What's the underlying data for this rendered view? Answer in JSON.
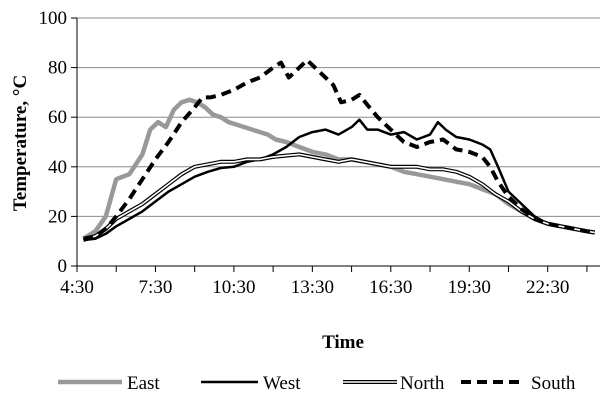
{
  "chart_data": {
    "type": "line",
    "title": "",
    "xlabel": "Time",
    "ylabel": "Temperature, °C",
    "x_ticks": [
      "4:30",
      "7:30",
      "10:30",
      "13:30",
      "16:30",
      "19:30",
      "22:30"
    ],
    "x_range": [
      4.5,
      24.5
    ],
    "ylim": [
      0,
      100
    ],
    "y_ticks": [
      0,
      20,
      40,
      60,
      80,
      100
    ],
    "grid": "horizontal",
    "legend_position": "bottom",
    "series": [
      {
        "name": "East",
        "color": "#999999",
        "style": "solid-thick",
        "x": [
          4.75,
          5.2,
          5.6,
          6.0,
          6.5,
          7.0,
          7.3,
          7.6,
          7.9,
          8.2,
          8.5,
          8.8,
          9.1,
          9.4,
          9.7,
          10.0,
          10.3,
          10.6,
          10.9,
          11.2,
          11.5,
          11.8,
          12.1,
          12.5,
          13.0,
          13.5,
          14.0,
          14.5,
          15.0,
          15.5,
          16.0,
          16.5,
          17.0,
          17.5,
          18.0,
          18.5,
          19.0,
          19.5,
          20.0,
          20.5,
          21.0,
          21.5,
          22.0,
          22.5,
          23.0,
          23.5,
          24.0,
          24.3
        ],
        "y": [
          11,
          14,
          20,
          35,
          37,
          45,
          55,
          58,
          56,
          63,
          66,
          67,
          66,
          64,
          61,
          60,
          58,
          57,
          56,
          55,
          54,
          53,
          51,
          50,
          48,
          46,
          45,
          43,
          43,
          42,
          41,
          40,
          38,
          37,
          36,
          35,
          34,
          33,
          31,
          29,
          25,
          22,
          19,
          17,
          16,
          15,
          14,
          13.5
        ]
      },
      {
        "name": "West",
        "color": "#000000",
        "style": "solid",
        "x": [
          4.75,
          5.2,
          5.6,
          6.0,
          6.5,
          7.0,
          7.5,
          8.0,
          8.5,
          9.0,
          9.5,
          10.0,
          10.5,
          11.0,
          11.5,
          12.0,
          12.5,
          13.0,
          13.5,
          14.0,
          14.5,
          15.0,
          15.3,
          15.6,
          16.0,
          16.5,
          17.0,
          17.5,
          18.0,
          18.3,
          18.6,
          19.0,
          19.5,
          20.0,
          20.3,
          20.6,
          21.0,
          21.5,
          22.0,
          22.5,
          23.0,
          23.5,
          24.0,
          24.3
        ],
        "y": [
          10.5,
          11,
          13,
          16,
          19,
          22,
          26,
          30,
          33,
          36,
          38,
          39.5,
          40,
          42,
          43,
          45,
          48,
          52,
          54,
          55,
          53,
          56,
          59,
          55,
          55,
          53,
          54,
          51,
          53,
          58,
          55,
          52,
          51,
          49,
          47,
          40,
          30,
          25,
          20,
          17,
          16,
          15,
          14,
          13.5
        ]
      },
      {
        "name": "North",
        "color": "#000000",
        "style": "double",
        "x": [
          4.75,
          5.2,
          5.6,
          6.0,
          6.5,
          7.0,
          7.5,
          8.0,
          8.5,
          9.0,
          9.5,
          10.0,
          10.5,
          11.0,
          11.5,
          12.0,
          12.5,
          13.0,
          13.5,
          14.0,
          14.5,
          15.0,
          15.5,
          16.0,
          16.5,
          17.0,
          17.5,
          18.0,
          18.5,
          19.0,
          19.5,
          20.0,
          20.5,
          21.0,
          21.5,
          22.0,
          22.5,
          23.0,
          23.5,
          24.0,
          24.3
        ],
        "y": [
          11,
          12,
          15,
          19,
          22,
          25,
          29,
          33,
          37,
          40,
          41,
          42,
          42,
          43,
          43,
          44,
          44.5,
          45,
          44,
          43,
          42,
          43,
          42,
          41,
          40,
          40,
          40,
          39,
          39,
          38,
          36,
          33,
          29,
          26,
          22,
          19,
          17,
          16,
          15,
          14,
          13.5
        ]
      },
      {
        "name": "South",
        "color": "#000000",
        "style": "dashed-thick",
        "x": [
          4.75,
          5.2,
          5.6,
          6.0,
          6.5,
          7.0,
          7.5,
          8.0,
          8.5,
          9.0,
          9.3,
          9.6,
          10.0,
          10.5,
          11.0,
          11.5,
          12.0,
          12.3,
          12.6,
          13.0,
          13.3,
          13.6,
          14.0,
          14.3,
          14.6,
          15.0,
          15.3,
          15.6,
          16.0,
          16.5,
          17.0,
          17.5,
          18.0,
          18.5,
          19.0,
          19.5,
          20.0,
          20.3,
          20.6,
          21.0,
          21.5,
          22.0,
          22.5,
          23.0,
          23.5,
          24.0,
          24.3
        ],
        "y": [
          10.5,
          12,
          15,
          20,
          27,
          35,
          43,
          50,
          58,
          64,
          68,
          68,
          69,
          71,
          74,
          76,
          80,
          82,
          76,
          80,
          83,
          80,
          76,
          73,
          66,
          67,
          69,
          65,
          60,
          55,
          50,
          48,
          50,
          51,
          47,
          46,
          44,
          40,
          34,
          28,
          23,
          19,
          17,
          16,
          15,
          14,
          13.5
        ]
      }
    ]
  }
}
